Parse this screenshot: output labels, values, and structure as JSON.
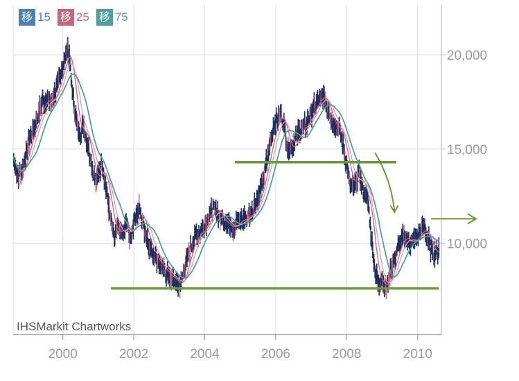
{
  "legend": [
    {
      "glyph": "移",
      "label": "15",
      "color": "#4a82b8"
    },
    {
      "glyph": "移",
      "label": "25",
      "color": "#c8657d"
    },
    {
      "glyph": "移",
      "label": "75",
      "color": "#4ba39a"
    }
  ],
  "watermark": "IHSMarkit Chartworks",
  "colors": {
    "price": "#1e2f5e",
    "ma15": "#c8657d",
    "ma75": "#4ba39a",
    "annotation": "#6a9a3a",
    "grid": "#dcdcdc",
    "axis": "#9a9a9a"
  },
  "chart_data": {
    "type": "line",
    "title": "",
    "xlabel": "",
    "ylabel": "",
    "xlim": [
      1998.6,
      2010.6
    ],
    "ylim": [
      5000,
      22500
    ],
    "x_ticks": [
      "2000",
      "2002",
      "2004",
      "2006",
      "2008",
      "2010"
    ],
    "y_ticks": [
      "10,000",
      "15,000",
      "20,000"
    ],
    "grid": true,
    "legend_position": "top-left",
    "series": [
      {
        "name": "移 15",
        "type": "moving-average",
        "period": 15
      },
      {
        "name": "移 25",
        "type": "moving-average",
        "period": 25
      },
      {
        "name": "移 75",
        "type": "moving-average",
        "period": 75
      }
    ],
    "price_points": [
      [
        1998.6,
        14600
      ],
      [
        1998.75,
        13400
      ],
      [
        1998.9,
        14300
      ],
      [
        1999.1,
        15800
      ],
      [
        1999.25,
        16400
      ],
      [
        1999.4,
        17400
      ],
      [
        1999.55,
        17700
      ],
      [
        1999.7,
        17500
      ],
      [
        1999.85,
        18400
      ],
      [
        2000.05,
        19800
      ],
      [
        2000.15,
        20500
      ],
      [
        2000.3,
        17500
      ],
      [
        2000.45,
        15800
      ],
      [
        2000.6,
        16200
      ],
      [
        2000.75,
        14800
      ],
      [
        2000.85,
        13800
      ],
      [
        2000.95,
        13200
      ],
      [
        2001.1,
        14300
      ],
      [
        2001.25,
        12600
      ],
      [
        2001.35,
        11300
      ],
      [
        2001.45,
        10200
      ],
      [
        2001.55,
        10800
      ],
      [
        2001.7,
        10400
      ],
      [
        2001.8,
        11200
      ],
      [
        2001.9,
        10200
      ],
      [
        2002.0,
        11200
      ],
      [
        2002.15,
        11800
      ],
      [
        2002.3,
        10800
      ],
      [
        2002.45,
        9800
      ],
      [
        2002.6,
        9300
      ],
      [
        2002.75,
        8800
      ],
      [
        2002.9,
        8400
      ],
      [
        2003.05,
        8200
      ],
      [
        2003.3,
        7700
      ],
      [
        2003.45,
        8700
      ],
      [
        2003.55,
        9500
      ],
      [
        2003.7,
        10300
      ],
      [
        2003.85,
        10600
      ],
      [
        2004.0,
        10900
      ],
      [
        2004.15,
        11600
      ],
      [
        2004.3,
        11900
      ],
      [
        2004.45,
        11300
      ],
      [
        2004.6,
        11100
      ],
      [
        2004.8,
        10900
      ],
      [
        2005.0,
        11200
      ],
      [
        2005.2,
        11400
      ],
      [
        2005.35,
        11800
      ],
      [
        2005.5,
        12400
      ],
      [
        2005.65,
        13400
      ],
      [
        2005.8,
        14900
      ],
      [
        2005.95,
        16300
      ],
      [
        2006.15,
        16900
      ],
      [
        2006.25,
        16100
      ],
      [
        2006.35,
        15000
      ],
      [
        2006.5,
        15300
      ],
      [
        2006.65,
        15900
      ],
      [
        2006.85,
        16300
      ],
      [
        2007.05,
        17100
      ],
      [
        2007.2,
        17600
      ],
      [
        2007.35,
        17800
      ],
      [
        2007.5,
        17100
      ],
      [
        2007.6,
        16300
      ],
      [
        2007.75,
        16300
      ],
      [
        2007.85,
        15600
      ],
      [
        2008.0,
        14200
      ],
      [
        2008.1,
        13200
      ],
      [
        2008.2,
        12900
      ],
      [
        2008.35,
        13800
      ],
      [
        2008.45,
        12800
      ],
      [
        2008.6,
        12300
      ],
      [
        2008.7,
        10200
      ],
      [
        2008.8,
        8600
      ],
      [
        2008.9,
        7800
      ],
      [
        2009.0,
        8200
      ],
      [
        2009.1,
        7500
      ],
      [
        2009.2,
        8300
      ],
      [
        2009.35,
        9200
      ],
      [
        2009.5,
        10100
      ],
      [
        2009.65,
        10300
      ],
      [
        2009.8,
        10000
      ],
      [
        2010.0,
        10300
      ],
      [
        2010.15,
        10900
      ],
      [
        2010.3,
        10200
      ],
      [
        2010.4,
        9600
      ],
      [
        2010.5,
        9400
      ],
      [
        2010.6,
        9800
      ]
    ],
    "annotations": [
      {
        "type": "hline",
        "y": 14300,
        "x1": 2004.85,
        "x2": 2009.4
      },
      {
        "type": "hline",
        "y": 7600,
        "x1": 2001.35,
        "x2": 2010.6
      },
      {
        "type": "arrow",
        "from": [
          2008.8,
          14800
        ],
        "to": [
          2009.35,
          11600
        ],
        "direction": "down"
      },
      {
        "type": "arrow",
        "from": [
          2010.2,
          11300
        ],
        "to": [
          2011.2,
          11300
        ],
        "direction": "right"
      }
    ]
  }
}
